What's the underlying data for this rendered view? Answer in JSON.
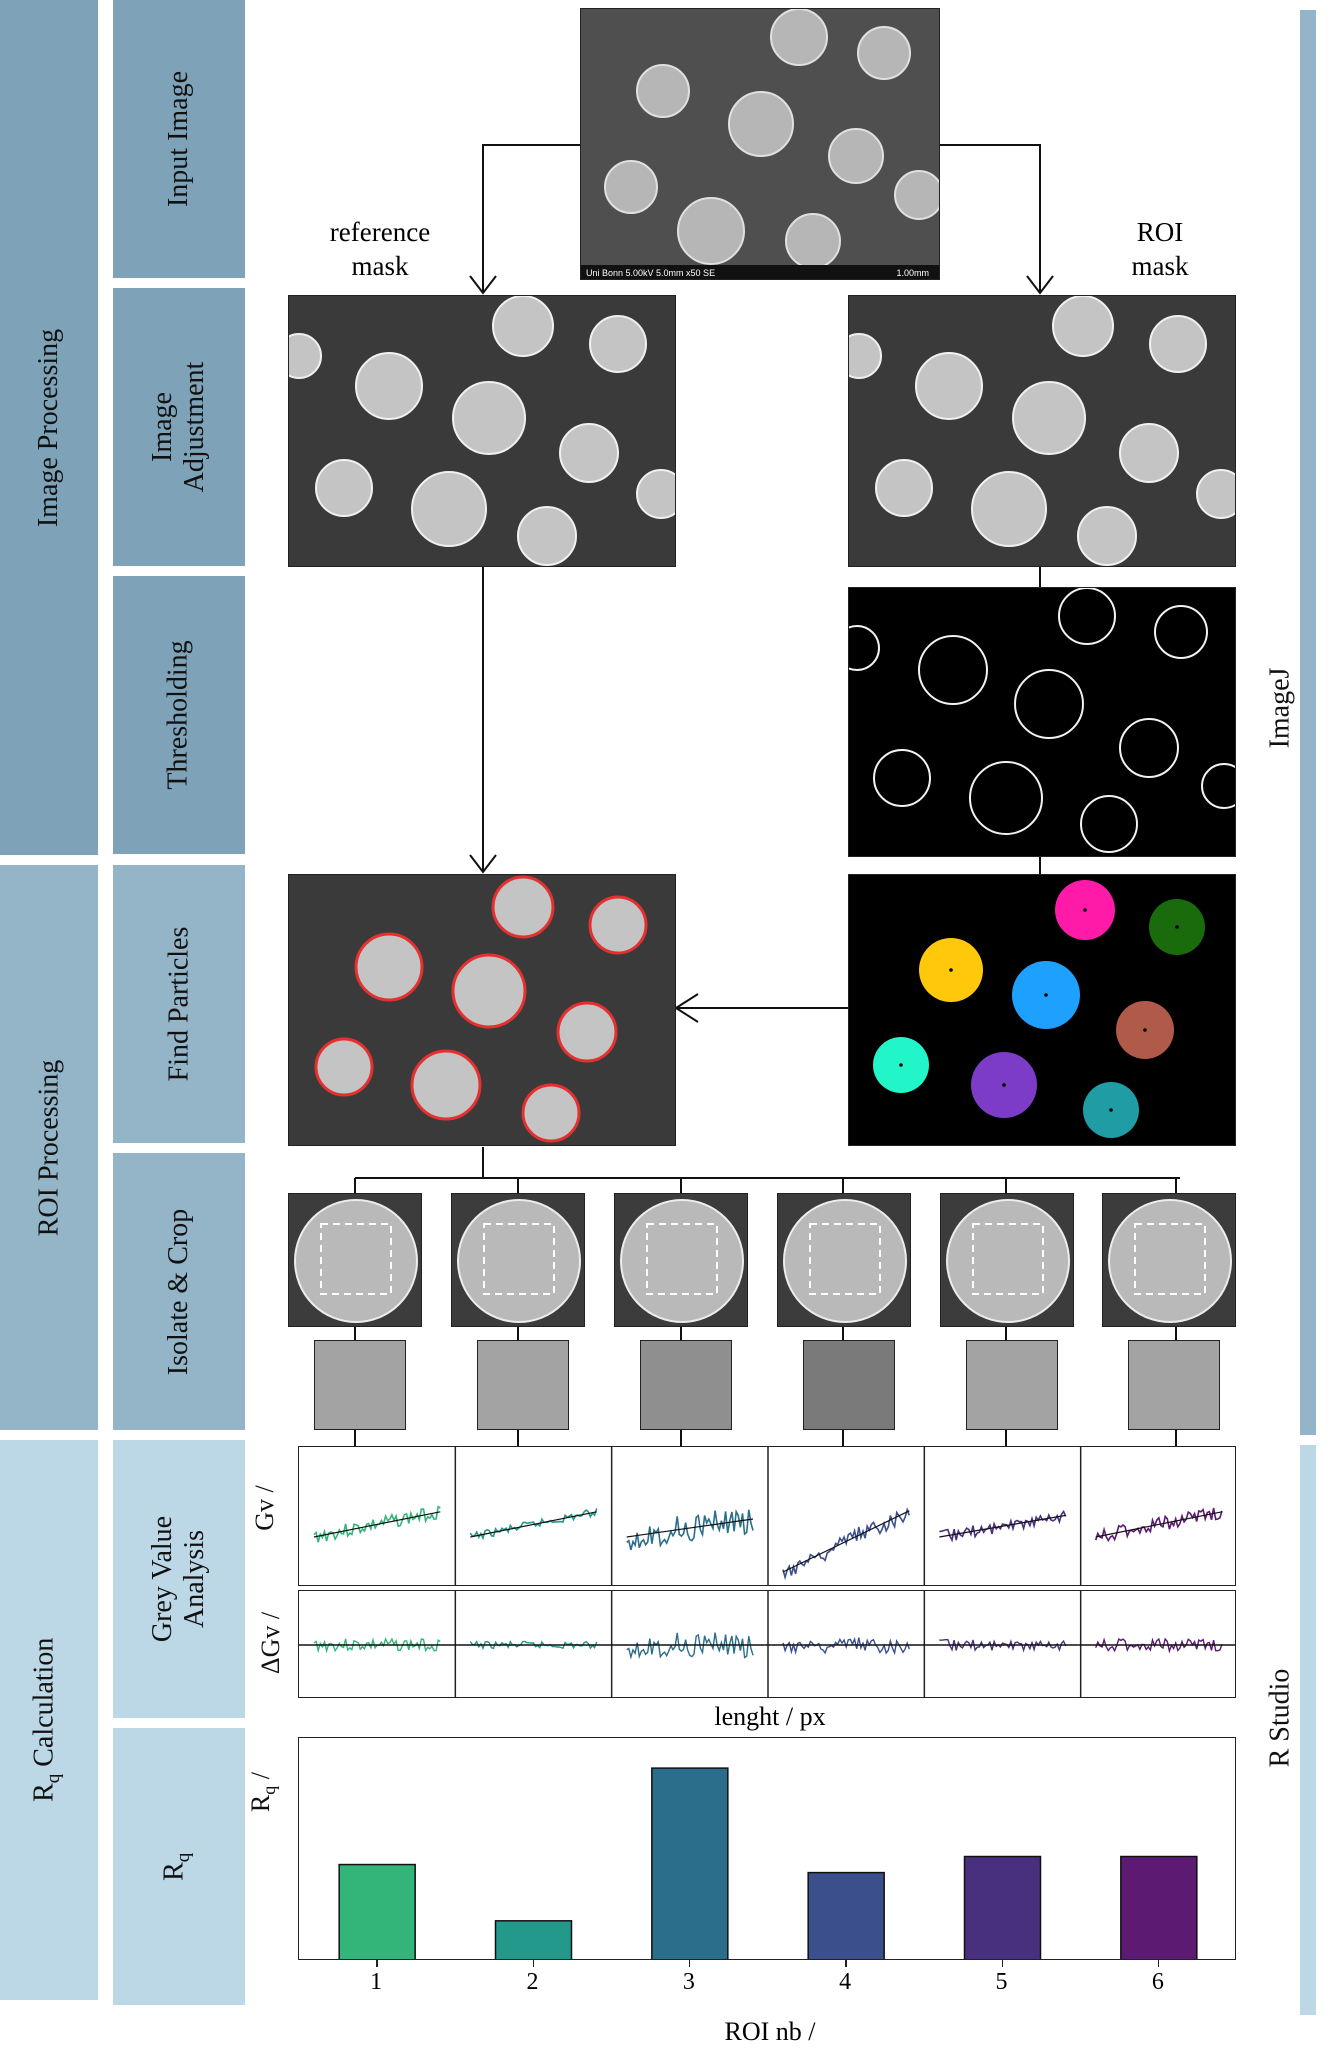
{
  "left_column": {
    "sections": [
      "Image Processing",
      "ROI  Processing",
      "Calculation"
    ],
    "rq_symbol": "R",
    "rq_subscript": "q"
  },
  "steps": [
    "Input Image",
    "Image Adjustment",
    "Thresholding",
    "Find Particles",
    "Isolate & Crop",
    "Grey Value Analysis",
    "R"
  ],
  "step_rq_subscript": "q",
  "right_column": {
    "tool1": "ImageJ",
    "tool2": "R Studio"
  },
  "labels": {
    "reference_mask_1": "reference",
    "reference_mask_2": "mask",
    "roi_mask_1": "ROI",
    "roi_mask_2": "mask",
    "sem_caption": "Uni Bonn 5.00kV 5.0mm x50 SE",
    "sem_scale": "1.00mm"
  },
  "grey_value": {
    "ylabel_top": "Gv /",
    "ylabel_bottom": "ΔGv /",
    "xlabel": "lenght / px"
  },
  "colors": {
    "roi": [
      "#33b57a",
      "#22998a",
      "#2a6e8c",
      "#3b4f8d",
      "#48307f",
      "#5c1a72"
    ],
    "particles": [
      "#ff1aa8",
      "#1a6b0c",
      "#ffc80a",
      "#1ea0ff",
      "#b05a4a",
      "#22f5c8",
      "#7d3cc8",
      "#1f9ca4"
    ]
  },
  "chart_data": {
    "type": "bar",
    "categories": [
      "1",
      "2",
      "3",
      "4",
      "5",
      "6"
    ],
    "values": [
      2.4,
      1.0,
      4.8,
      2.2,
      2.6,
      2.6
    ],
    "ylim": [
      0,
      5.4
    ],
    "xlabel": "ROI nb /",
    "ylabel": "R",
    "ylabel_subscript": "q",
    "ylabel_suffix": " /",
    "grid": false
  }
}
